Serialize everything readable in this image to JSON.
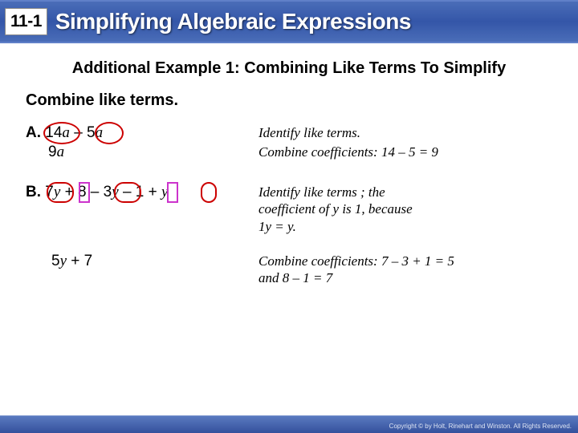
{
  "colors": {
    "header_gradient_top": "#4a6db8",
    "header_gradient_mid": "#3456a8",
    "oval_border": "#cc0000",
    "rect_border": "#cc33cc",
    "footer_gradient_top": "#5a7ac0",
    "footer_gradient_bottom": "#34509c"
  },
  "header": {
    "lesson_number": "11-1",
    "title": "Simplifying Algebraic Expressions"
  },
  "subtitle": "Additional Example 1: Combining Like Terms To Simplify",
  "instruction": "Combine like terms.",
  "exA": {
    "label": "A.",
    "expr_terms": [
      "14",
      "a",
      " – ",
      "5",
      "a"
    ],
    "result_terms": [
      "9",
      "a"
    ],
    "note1": "Identify like terms.",
    "note2": "Combine coefficients: 14 – 5 = 9"
  },
  "exB": {
    "label": "B.",
    "expr_terms": [
      "7",
      "y",
      " + ",
      "8",
      " – ",
      "3",
      "y",
      " – ",
      "1",
      " + ",
      "y"
    ],
    "result_terms": [
      "5",
      "y",
      "  +  ",
      "7"
    ],
    "note1_lines": [
      "Identify like terms ; the",
      "coefficient of y is 1, because",
      "1y = y."
    ],
    "note2_lines": [
      "Combine coefficients: 7 – 3 + 1 = 5",
      "and 8 – 1 = 7"
    ]
  },
  "footer": {
    "copyright": "Copyright © by Holt, Rinehart and Winston. All Rights Reserved."
  }
}
